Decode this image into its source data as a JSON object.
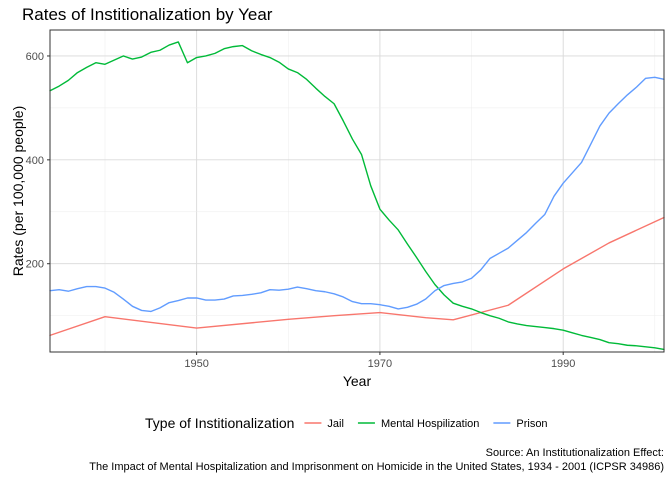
{
  "chart_data": {
    "type": "line",
    "title": "Rates of Institionalization by Year",
    "xlabel": "Year",
    "ylabel": "Rates (per 100,000 people)",
    "xlim": [
      1934,
      2001
    ],
    "ylim": [
      30,
      650
    ],
    "x_ticks": [
      1950,
      1970,
      1990
    ],
    "y_ticks": [
      200,
      400,
      600
    ],
    "grid": true,
    "legend": {
      "title": "Type of Institionalization",
      "placement": "bottom"
    },
    "caption": [
      "Source: An Institutionalization Effect:",
      "The Impact of Mental Hospitalization and Imprisonment on Homicide in the United States, 1934 - 2001 (ICPSR 34986)"
    ],
    "series": [
      {
        "name": "Jail",
        "color": "#F8766D",
        "x": [
          1934,
          1940,
          1950,
          1960,
          1965,
          1970,
          1975,
          1978,
          1984,
          1990,
          1995,
          2001
        ],
        "values": [
          62,
          98,
          76,
          93,
          100,
          106,
          96,
          92,
          120,
          190,
          240,
          289
        ]
      },
      {
        "name": "Mental Hospilization",
        "color": "#00BA38",
        "x": [
          1934,
          1935,
          1936,
          1937,
          1938,
          1939,
          1940,
          1941,
          1942,
          1943,
          1944,
          1945,
          1946,
          1947,
          1948,
          1949,
          1950,
          1951,
          1952,
          1953,
          1954,
          1955,
          1956,
          1957,
          1958,
          1959,
          1960,
          1961,
          1962,
          1963,
          1964,
          1965,
          1966,
          1967,
          1968,
          1969,
          1970,
          1971,
          1972,
          1973,
          1974,
          1975,
          1976,
          1977,
          1978,
          1979,
          1980,
          1981,
          1982,
          1983,
          1984,
          1985,
          1986,
          1987,
          1988,
          1989,
          1990,
          1991,
          1992,
          1993,
          1994,
          1995,
          1996,
          1997,
          1998,
          1999,
          2000,
          2001
        ],
        "values": [
          533,
          542,
          553,
          568,
          578,
          587,
          584,
          592,
          600,
          594,
          598,
          607,
          611,
          621,
          627,
          587,
          597,
          600,
          605,
          614,
          618,
          620,
          610,
          603,
          597,
          588,
          575,
          568,
          555,
          538,
          522,
          508,
          475,
          440,
          410,
          350,
          305,
          284,
          265,
          238,
          212,
          185,
          160,
          140,
          124,
          118,
          113,
          106,
          100,
          95,
          88,
          84,
          81,
          79,
          77,
          75,
          72,
          67,
          62,
          58,
          54,
          48,
          46,
          43,
          42,
          40,
          38,
          35
        ]
      },
      {
        "name": "Prison",
        "color": "#619CFF",
        "x": [
          1934,
          1935,
          1936,
          1937,
          1938,
          1939,
          1940,
          1941,
          1942,
          1943,
          1944,
          1945,
          1946,
          1947,
          1948,
          1949,
          1950,
          1951,
          1952,
          1953,
          1954,
          1955,
          1956,
          1957,
          1958,
          1959,
          1960,
          1961,
          1962,
          1963,
          1964,
          1965,
          1966,
          1967,
          1968,
          1969,
          1970,
          1971,
          1972,
          1973,
          1974,
          1975,
          1976,
          1977,
          1978,
          1979,
          1980,
          1981,
          1982,
          1983,
          1984,
          1985,
          1986,
          1987,
          1988,
          1989,
          1990,
          1991,
          1992,
          1993,
          1994,
          1995,
          1996,
          1997,
          1998,
          1999,
          2000,
          2001
        ],
        "values": [
          148,
          150,
          147,
          152,
          156,
          156,
          153,
          145,
          132,
          118,
          110,
          108,
          115,
          125,
          129,
          134,
          134,
          130,
          130,
          132,
          138,
          139,
          141,
          144,
          150,
          149,
          151,
          155,
          152,
          148,
          146,
          142,
          136,
          127,
          123,
          123,
          121,
          118,
          113,
          116,
          122,
          132,
          148,
          158,
          162,
          165,
          172,
          188,
          210,
          220,
          230,
          245,
          260,
          278,
          295,
          330,
          355,
          375,
          395,
          430,
          465,
          490,
          508,
          525,
          540,
          557,
          559,
          555
        ]
      }
    ]
  }
}
